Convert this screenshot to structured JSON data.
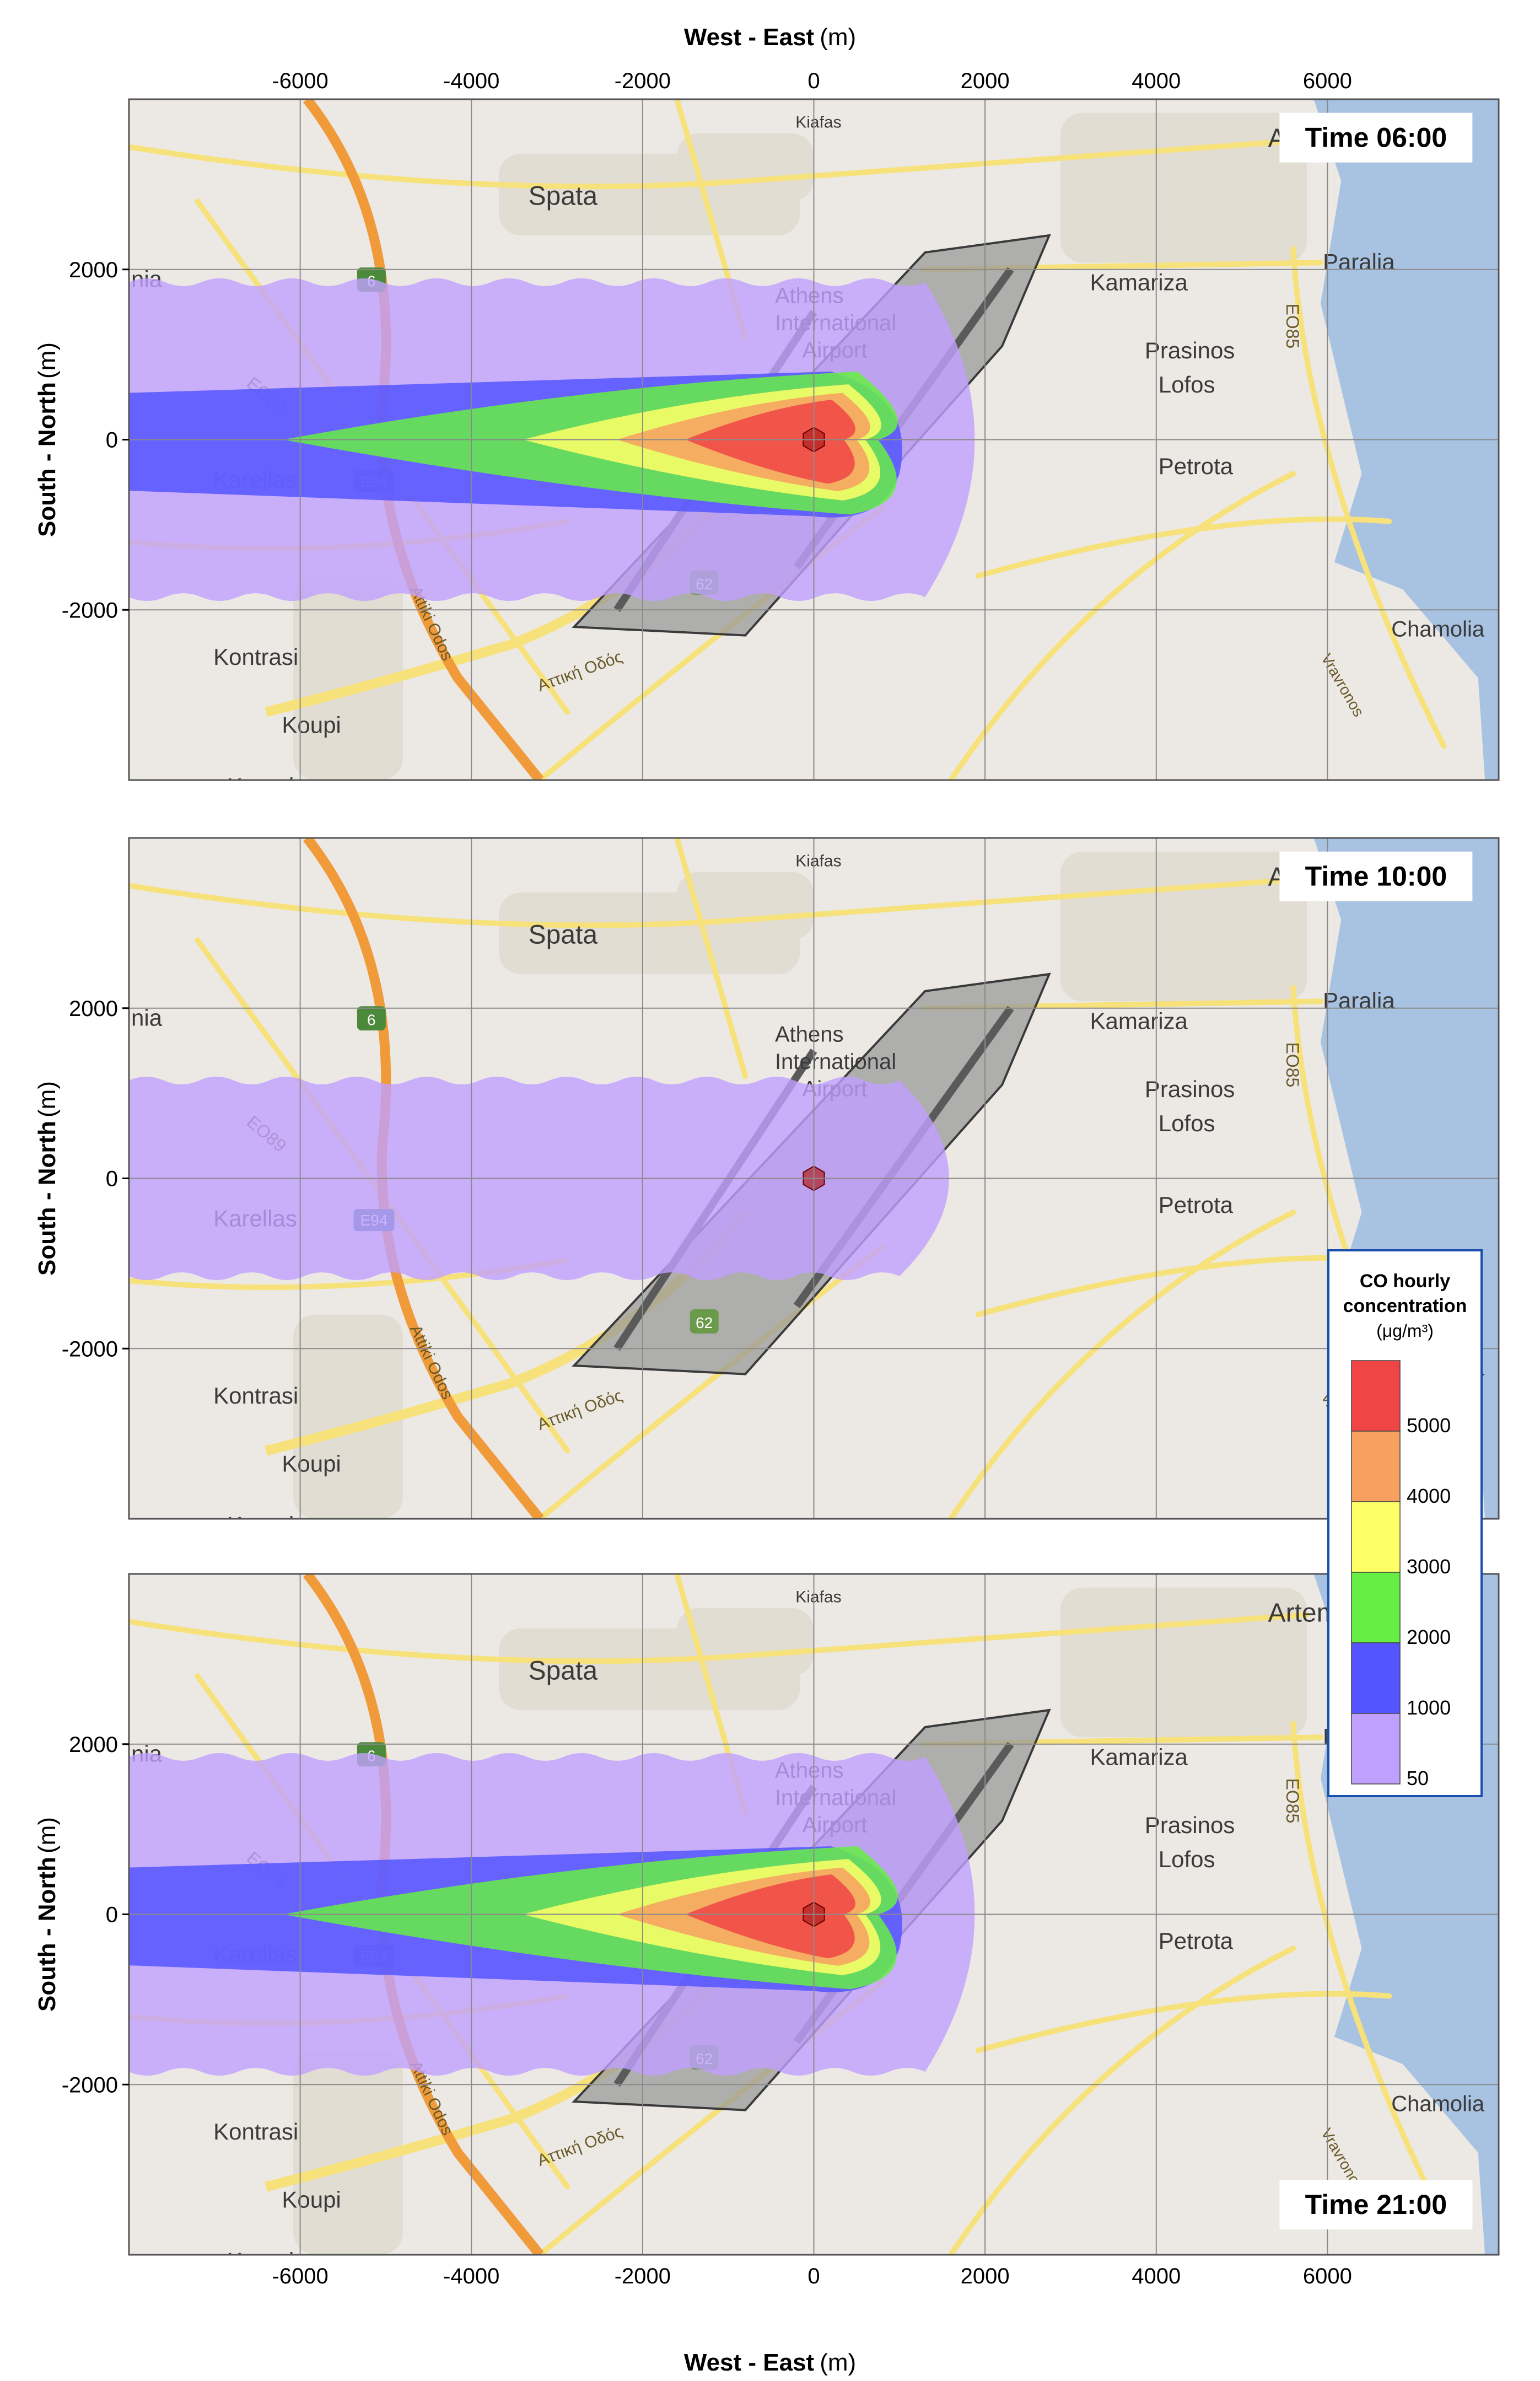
{
  "axes": {
    "x_title": "West - East",
    "x_unit": "(m)",
    "y_title": "South - North",
    "y_unit": "(m)",
    "x_ticks": [
      "-6000",
      "-4000",
      "-2000",
      "0",
      "2000",
      "4000",
      "6000"
    ],
    "x_tick_values": [
      -6000,
      -4000,
      -2000,
      0,
      2000,
      4000,
      6000
    ],
    "y_ticks": [
      "2000",
      "0",
      "-2000"
    ],
    "y_tick_values": [
      2000,
      0,
      -2000
    ],
    "x_range": [
      -8000,
      8000
    ],
    "y_range": [
      -4000,
      4000
    ]
  },
  "panels": [
    {
      "time_label": "Time 06:00",
      "plume": "strong"
    },
    {
      "time_label": "Time 10:00",
      "plume": "weak"
    },
    {
      "time_label": "Time 21:00",
      "plume": "strong"
    }
  ],
  "places": [
    "Artemida",
    "Spata",
    "Kiafas",
    "Paralia",
    "Kamariza",
    "Athens",
    "International",
    "Airport",
    "Prasinos",
    "Lofos",
    "Petrota",
    "Karellas",
    "Kontrasi",
    "Koupi",
    "Koropi",
    "Chamolia",
    "nia"
  ],
  "roads": [
    "6",
    "E94",
    "EO89",
    "EO85",
    "62",
    "Αττική Οδός",
    "Attiki Odos",
    "Vravronos"
  ],
  "legend": {
    "title_line1": "CO hourly",
    "title_line2": "concentration",
    "unit": "(μg/m³)",
    "levels": [
      "5000",
      "4000",
      "3000",
      "2000",
      "1000",
      "50"
    ],
    "colors": [
      "#f04545",
      "#f7a060",
      "#ffff66",
      "#66ee44",
      "#5555ff",
      "#c0a0ff"
    ]
  },
  "colors": {
    "map_bg": "#ece9e5",
    "sea": "#a8c2e2",
    "road_major": "#f19a3a",
    "road_minor": "#f7e17a",
    "airport": "#9a9a9a",
    "grid": "#8a8a8a"
  }
}
